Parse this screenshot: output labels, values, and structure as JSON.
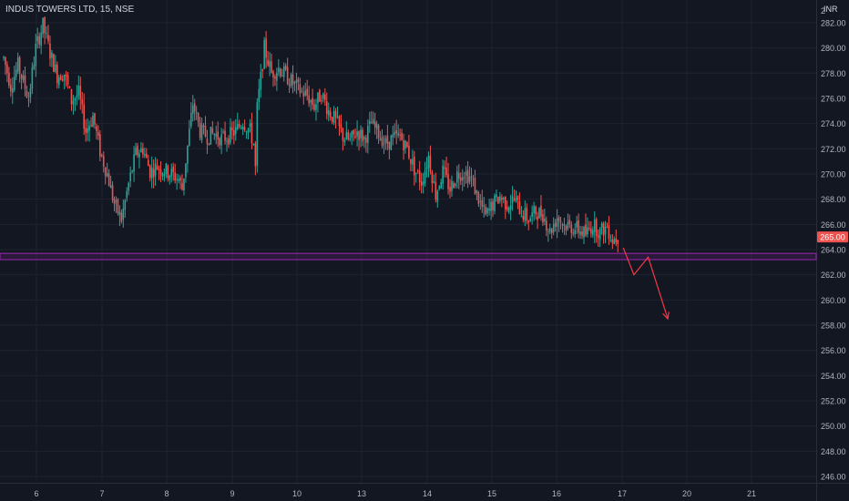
{
  "legend": {
    "symbol": "INDUS TOWERS LTD, 15, NSE"
  },
  "currency_label": "INR",
  "top_price_label": "2",
  "colors": {
    "background": "#131722",
    "grid": "#1f2330",
    "up": "#26a69a",
    "down": "#ef5350",
    "zone": "#9c27b0",
    "arrow": "#f23645",
    "axis_text": "#b2b5be",
    "price_badge": "#ef5350"
  },
  "chart_data": {
    "type": "candlestick",
    "title": "INDUS TOWERS LTD, 15, NSE",
    "xlabel": "",
    "ylabel": "",
    "ylim": [
      245.5,
      283.8
    ],
    "y_ticks": [
      246,
      248,
      250,
      252,
      254,
      256,
      258,
      260,
      262,
      264,
      266,
      268,
      270,
      272,
      274,
      276,
      278,
      280,
      282
    ],
    "x_ticks": [
      "6",
      "7",
      "8",
      "9",
      "10",
      "13",
      "14",
      "15",
      "16",
      "17",
      "20",
      "21"
    ],
    "grid": true,
    "current_price": 265.0,
    "current_price_label": "265.00",
    "price_path": [
      [
        0,
        279.2
      ],
      [
        4,
        277.0
      ],
      [
        8,
        278.6
      ],
      [
        14,
        276.0
      ],
      [
        18,
        280.0
      ],
      [
        22,
        281.8
      ],
      [
        26,
        279.6
      ],
      [
        30,
        277.8
      ],
      [
        34,
        278.0
      ],
      [
        38,
        275.8
      ],
      [
        42,
        276.4
      ],
      [
        46,
        273.4
      ],
      [
        50,
        274.6
      ],
      [
        54,
        271.8
      ],
      [
        58,
        270.0
      ],
      [
        62,
        267.6
      ],
      [
        66,
        266.4
      ],
      [
        70,
        269.2
      ],
      [
        74,
        271.6
      ],
      [
        78,
        272.0
      ],
      [
        82,
        270.2
      ],
      [
        86,
        270.6
      ],
      [
        90,
        270.3
      ],
      [
        94,
        270.0
      ],
      [
        98,
        269.6
      ],
      [
        100,
        268.8
      ],
      [
        106,
        275.6
      ],
      [
        110,
        273.4
      ],
      [
        114,
        273.0
      ],
      [
        118,
        273.2
      ],
      [
        122,
        272.8
      ],
      [
        126,
        273.0
      ],
      [
        130,
        273.4
      ],
      [
        134,
        274.2
      ],
      [
        138,
        273.4
      ],
      [
        140,
        272.4
      ],
      [
        141,
        270.4
      ],
      [
        142,
        275.2
      ],
      [
        146,
        280.0
      ],
      [
        150,
        278.0
      ],
      [
        154,
        278.4
      ],
      [
        158,
        277.8
      ],
      [
        162,
        277.2
      ],
      [
        166,
        276.6
      ],
      [
        170,
        276.2
      ],
      [
        174,
        275.4
      ],
      [
        178,
        276.4
      ],
      [
        182,
        275.0
      ],
      [
        186,
        274.2
      ],
      [
        190,
        273.0
      ],
      [
        194,
        272.6
      ],
      [
        198,
        273.4
      ],
      [
        202,
        272.8
      ],
      [
        206,
        274.0
      ],
      [
        210,
        273.2
      ],
      [
        214,
        272.4
      ],
      [
        218,
        272.8
      ],
      [
        222,
        273.0
      ],
      [
        226,
        272.0
      ],
      [
        230,
        270.4
      ],
      [
        234,
        269.4
      ],
      [
        238,
        271.4
      ],
      [
        242,
        268.4
      ],
      [
        246,
        270.2
      ],
      [
        250,
        268.8
      ],
      [
        254,
        270.0
      ],
      [
        258,
        270.2
      ],
      [
        262,
        269.6
      ],
      [
        266,
        268.0
      ],
      [
        270,
        266.6
      ],
      [
        274,
        267.6
      ],
      [
        278,
        268.2
      ],
      [
        282,
        267.6
      ],
      [
        286,
        268.0
      ],
      [
        290,
        267.0
      ],
      [
        294,
        266.4
      ],
      [
        298,
        267.0
      ],
      [
        302,
        266.8
      ],
      [
        306,
        265.4
      ],
      [
        310,
        266.6
      ],
      [
        314,
        266.0
      ],
      [
        318,
        265.8
      ],
      [
        322,
        265.6
      ],
      [
        326,
        265.2
      ],
      [
        330,
        266.0
      ],
      [
        334,
        265.4
      ],
      [
        338,
        265.8
      ],
      [
        341,
        264.8
      ],
      [
        344,
        265.0
      ]
    ],
    "support_zone": {
      "low": 263.2,
      "high": 263.7
    },
    "projection": {
      "points": [
        [
          353,
          262.0
        ],
        [
          361,
          263.4
        ],
        [
          372,
          258.5
        ]
      ]
    }
  }
}
